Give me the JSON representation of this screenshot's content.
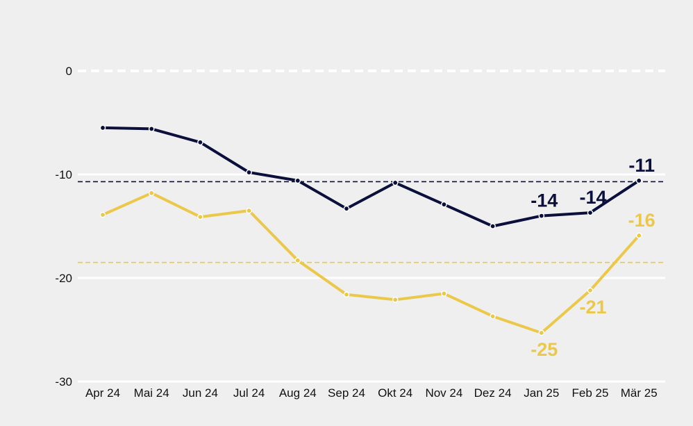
{
  "chart_data": {
    "type": "line",
    "categories": [
      "Apr 24",
      "Mai 24",
      "Jun 24",
      "Jul 24",
      "Aug 24",
      "Sep 24",
      "Okt 24",
      "Nov 24",
      "Dez 24",
      "Jan 25",
      "Feb 25",
      "Mär 25"
    ],
    "ylim": [
      -30,
      0
    ],
    "yticks": [
      0,
      -10,
      -20,
      -30
    ],
    "ytick_labels": [
      "0",
      "-10",
      "-20",
      "-30"
    ],
    "colors": {
      "navy": "#0b0f3c",
      "yellow": "#ecc84a",
      "grid": "#ffffff"
    },
    "series": [
      {
        "name": "series-navy",
        "color": "#0b0f3c",
        "values": [
          -5.5,
          -5.6,
          -6.9,
          -9.8,
          -10.6,
          -13.3,
          -10.8,
          -12.9,
          -15.0,
          -14.0,
          -13.7,
          -10.6
        ],
        "average": -10.7,
        "point_labels": [
          {
            "index": 9,
            "text": "-14",
            "pos": "above"
          },
          {
            "index": 10,
            "text": "-14",
            "pos": "above"
          },
          {
            "index": 11,
            "text": "-11",
            "pos": "above"
          }
        ]
      },
      {
        "name": "series-yellow",
        "color": "#ecc84a",
        "values": [
          -13.9,
          -11.8,
          -14.1,
          -13.5,
          -18.3,
          -21.6,
          -22.1,
          -21.5,
          -23.7,
          -25.3,
          -21.2,
          -15.9
        ],
        "average": -18.5,
        "point_labels": [
          {
            "index": 9,
            "text": "-25",
            "pos": "below"
          },
          {
            "index": 10,
            "text": "-21",
            "pos": "below"
          },
          {
            "index": 11,
            "text": "-16",
            "pos": "above"
          }
        ]
      }
    ]
  }
}
